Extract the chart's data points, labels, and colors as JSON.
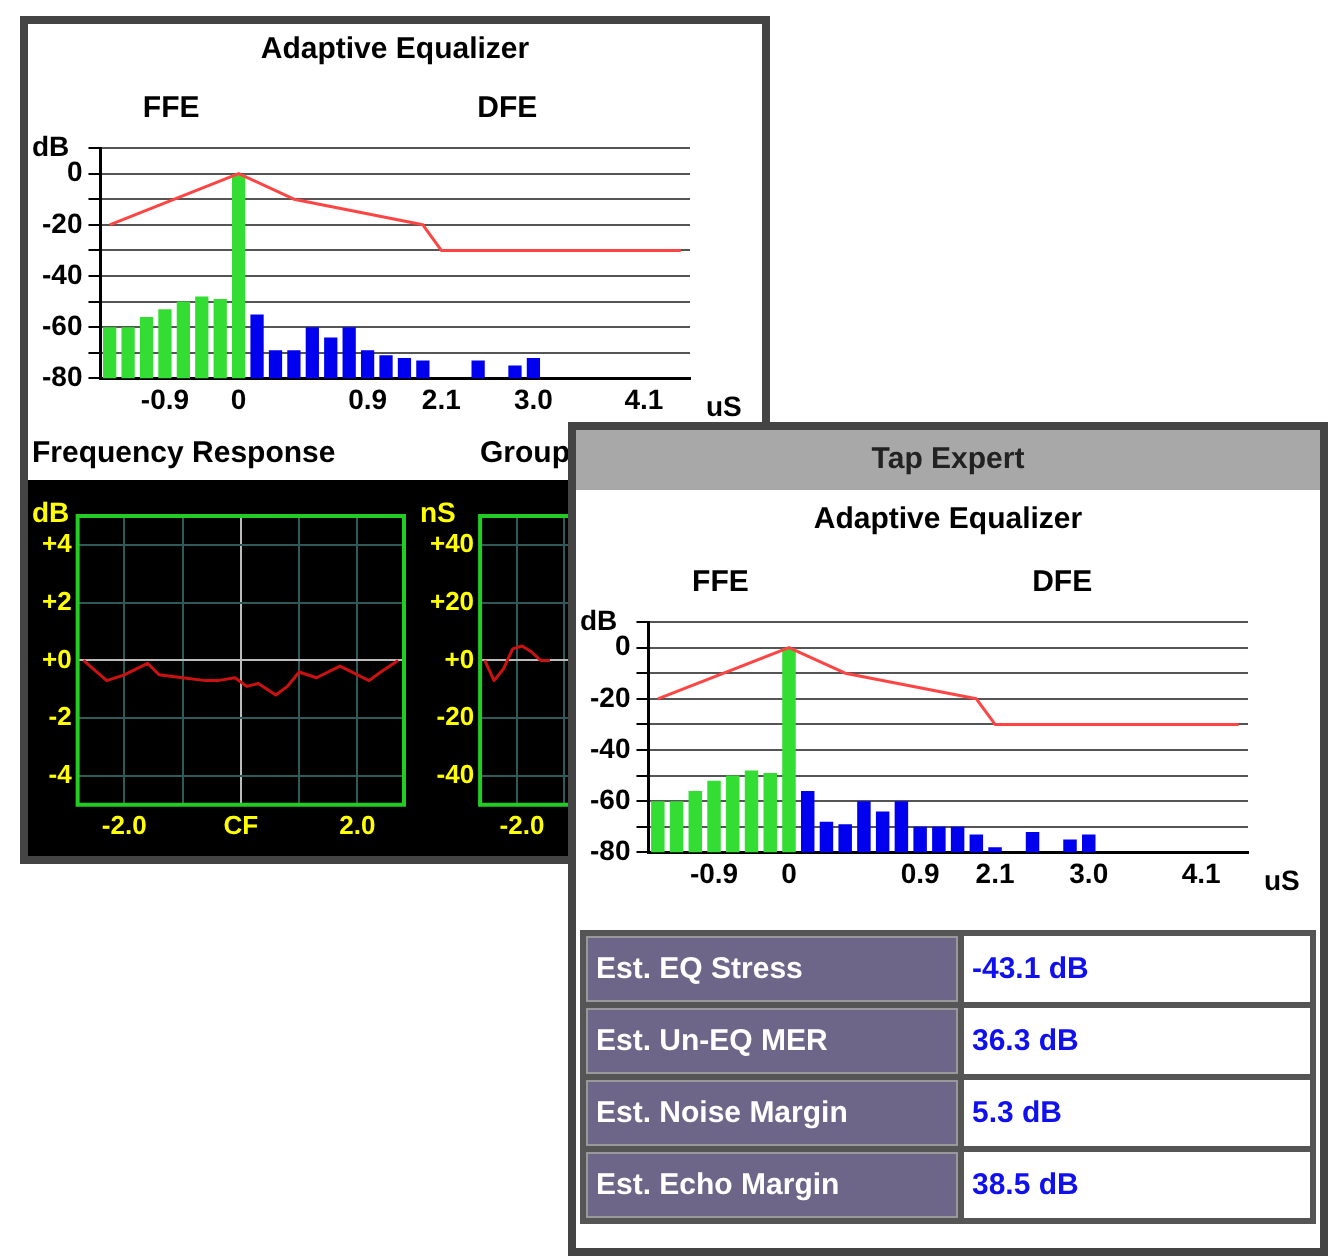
{
  "chart_data": [
    {
      "type": "bar",
      "title": "Adaptive Equalizer",
      "xlabel": "uS",
      "ylabel": "dB",
      "annotations": [
        "FFE",
        "DFE"
      ],
      "categories": [
        null,
        null,
        null,
        "-0.9",
        null,
        null,
        null,
        "0",
        null,
        null,
        null,
        null,
        null,
        null,
        "0.9",
        null,
        null,
        null,
        "2.1",
        null,
        null,
        null,
        null,
        "3.0",
        null,
        null,
        null,
        null,
        null,
        "4.1",
        null,
        null
      ],
      "series": [
        {
          "type": "bar",
          "colors": [
            "#33dd33",
            "#33dd33",
            "#33dd33",
            "#33dd33",
            "#33dd33",
            "#33dd33",
            "#33dd33",
            "#33dd33",
            "#0000ee",
            "#0000ee",
            "#0000ee",
            "#0000ee",
            "#0000ee",
            "#0000ee",
            "#0000ee",
            "#0000ee",
            "#0000ee",
            "#0000ee",
            "#0000ee",
            "#0000ee",
            "#0000ee",
            "#0000ee",
            "#0000ee",
            "#0000ee",
            "#0000ee",
            "#0000ee",
            "#0000ee",
            "#0000ee",
            "#0000ee",
            "#0000ee",
            "#0000ee",
            "#0000ee"
          ],
          "base": [
            -80,
            -80,
            -80,
            -80,
            -80,
            -80,
            -80,
            -80,
            -80,
            -80,
            -80,
            -80,
            -80,
            -80,
            -80,
            -80,
            -80,
            -80,
            null,
            null,
            -80,
            null,
            -80,
            -80,
            null,
            null,
            null,
            null,
            null,
            null,
            null,
            null
          ],
          "values": [
            20,
            20,
            24,
            27,
            30,
            32,
            31,
            80,
            25,
            11,
            11,
            20,
            16,
            20,
            11,
            9,
            8,
            7,
            null,
            null,
            7,
            null,
            5,
            8,
            null,
            null,
            null,
            null,
            null,
            null,
            null,
            null
          ]
        },
        {
          "type": "line",
          "color": "#ff4444",
          "values": [
            -20,
            null,
            null,
            null,
            null,
            null,
            null,
            0,
            null,
            null,
            -10,
            null,
            null,
            null,
            null,
            null,
            null,
            -20,
            -30,
            null,
            null,
            null,
            null,
            null,
            null,
            null,
            null,
            null,
            null,
            null,
            null,
            -30
          ]
        }
      ],
      "ylim": [
        -80,
        10
      ],
      "yticks": [
        {
          "value": 10,
          "label": null
        },
        0,
        {
          "value": -10,
          "label": null
        },
        -20,
        {
          "value": -30,
          "label": null
        },
        -40,
        {
          "value": -50,
          "label": null
        },
        -60,
        {
          "value": -70,
          "label": null
        },
        -80
      ],
      "grid": "y"
    },
    {
      "type": "line",
      "title": "Frequency Response",
      "ylabel": "dB",
      "color": "#cc1111",
      "x": [
        -2.7,
        -2.3,
        -2.0,
        -1.6,
        -1.4,
        -1.0,
        -0.6,
        -0.4,
        -0.1,
        0.1,
        0.3,
        0.6,
        0.8,
        1.0,
        1.3,
        1.7,
        1.9,
        2.1,
        2.2,
        2.4,
        2.7
      ],
      "values": [
        0.0,
        -0.7,
        -0.5,
        -0.1,
        -0.5,
        -0.6,
        -0.7,
        -0.7,
        -0.6,
        -0.9,
        -0.8,
        -1.2,
        -0.9,
        -0.4,
        -0.6,
        -0.2,
        -0.4,
        -0.6,
        -0.7,
        -0.4,
        0.0
      ],
      "xlim": [
        -2.8,
        2.8
      ],
      "xticks": [
        {
          "value": -2,
          "label": "-2.0"
        },
        {
          "value": -1,
          "label": null
        },
        {
          "value": 0,
          "label": "CF"
        },
        {
          "value": 1,
          "label": null
        },
        {
          "value": 2,
          "label": "2.0"
        }
      ],
      "ylim": [
        -5,
        5
      ],
      "yticks": [
        {
          "value": 4,
          "label": "+4"
        },
        {
          "value": 2,
          "label": "+2"
        },
        {
          "value": 0,
          "label": "+0"
        },
        -2,
        -4
      ],
      "grid": true
    },
    {
      "type": "line",
      "title": "Group",
      "ylabel": "nS",
      "color": "#cc1111",
      "categories": [
        null,
        null,
        null,
        null,
        "-2.0",
        null,
        null,
        null,
        null,
        null,
        null,
        null,
        null,
        null,
        null,
        null,
        null,
        null,
        null,
        null,
        null,
        null,
        null,
        null,
        null,
        null,
        null,
        null,
        null
      ],
      "values": [
        0,
        -7,
        -3,
        4,
        5,
        3,
        0,
        0,
        null,
        null,
        null,
        null,
        null,
        null,
        null,
        null,
        null,
        null,
        null,
        null,
        null,
        null,
        null,
        null,
        null,
        null,
        null,
        null,
        null
      ],
      "ylim": [
        -50,
        50
      ],
      "yticks": [
        {
          "value": 40,
          "label": "+40"
        },
        {
          "value": 20,
          "label": "+20"
        },
        {
          "value": 0,
          "label": "+0"
        },
        -20,
        -40
      ],
      "grid": true
    },
    {
      "type": "bar",
      "title": "Tap Expert",
      "subtitle": "Adaptive Equalizer",
      "xlabel": "uS",
      "ylabel": "dB",
      "annotations": [
        "FFE",
        "DFE"
      ],
      "categories": [
        null,
        null,
        null,
        "-0.9",
        null,
        null,
        null,
        "0",
        null,
        null,
        null,
        null,
        null,
        null,
        "0.9",
        null,
        null,
        null,
        "2.1",
        null,
        null,
        null,
        null,
        "3.0",
        null,
        null,
        null,
        null,
        null,
        "4.1",
        null,
        null
      ],
      "series": [
        {
          "type": "bar",
          "colors": [
            "#33dd33",
            "#33dd33",
            "#33dd33",
            "#33dd33",
            "#33dd33",
            "#33dd33",
            "#33dd33",
            "#33dd33",
            "#0000ee",
            "#0000ee",
            "#0000ee",
            "#0000ee",
            "#0000ee",
            "#0000ee",
            "#0000ee",
            "#0000ee",
            "#0000ee",
            "#0000ee",
            "#0000ee",
            "#0000ee",
            "#0000ee",
            "#0000ee",
            "#0000ee",
            "#0000ee",
            "#0000ee",
            "#0000ee",
            "#0000ee",
            "#0000ee",
            "#0000ee",
            "#0000ee",
            "#0000ee",
            "#0000ee"
          ],
          "base": [
            -80,
            -80,
            -80,
            -80,
            -80,
            -80,
            -80,
            -80,
            -80,
            -80,
            -80,
            -80,
            -80,
            -80,
            -80,
            -80,
            -80,
            -80,
            -80,
            null,
            -80,
            null,
            -80,
            -80,
            null,
            null,
            null,
            null,
            null,
            null,
            null,
            null
          ],
          "values": [
            20,
            20,
            24,
            28,
            30,
            32,
            31,
            80,
            24,
            12,
            11,
            20,
            16,
            20,
            10,
            10,
            10,
            7,
            2,
            null,
            8,
            null,
            5,
            7,
            null,
            null,
            null,
            null,
            null,
            null,
            null,
            null
          ]
        },
        {
          "type": "line",
          "color": "#ff4444",
          "values": [
            -20,
            null,
            null,
            null,
            null,
            null,
            null,
            0,
            null,
            null,
            -10,
            null,
            null,
            null,
            null,
            null,
            null,
            -20,
            -30,
            null,
            null,
            null,
            null,
            null,
            null,
            null,
            null,
            null,
            null,
            null,
            null,
            -30
          ]
        }
      ],
      "ylim": [
        -80,
        10
      ],
      "yticks": [
        {
          "value": 10,
          "label": null
        },
        0,
        {
          "value": -10,
          "label": null
        },
        -20,
        {
          "value": -30,
          "label": null
        },
        -40,
        {
          "value": -50,
          "label": null
        },
        -60,
        {
          "value": -70,
          "label": null
        },
        -80
      ],
      "grid": "y"
    },
    {
      "type": "other",
      "categories": [
        "Est. EQ Stress",
        "Est. Un-EQ MER",
        "Est. Noise Margin",
        "Est. Echo Margin"
      ],
      "value_labels": [
        "-43.1 dB",
        "36.3 dB",
        "5.3 dB",
        "38.5 dB"
      ]
    }
  ]
}
